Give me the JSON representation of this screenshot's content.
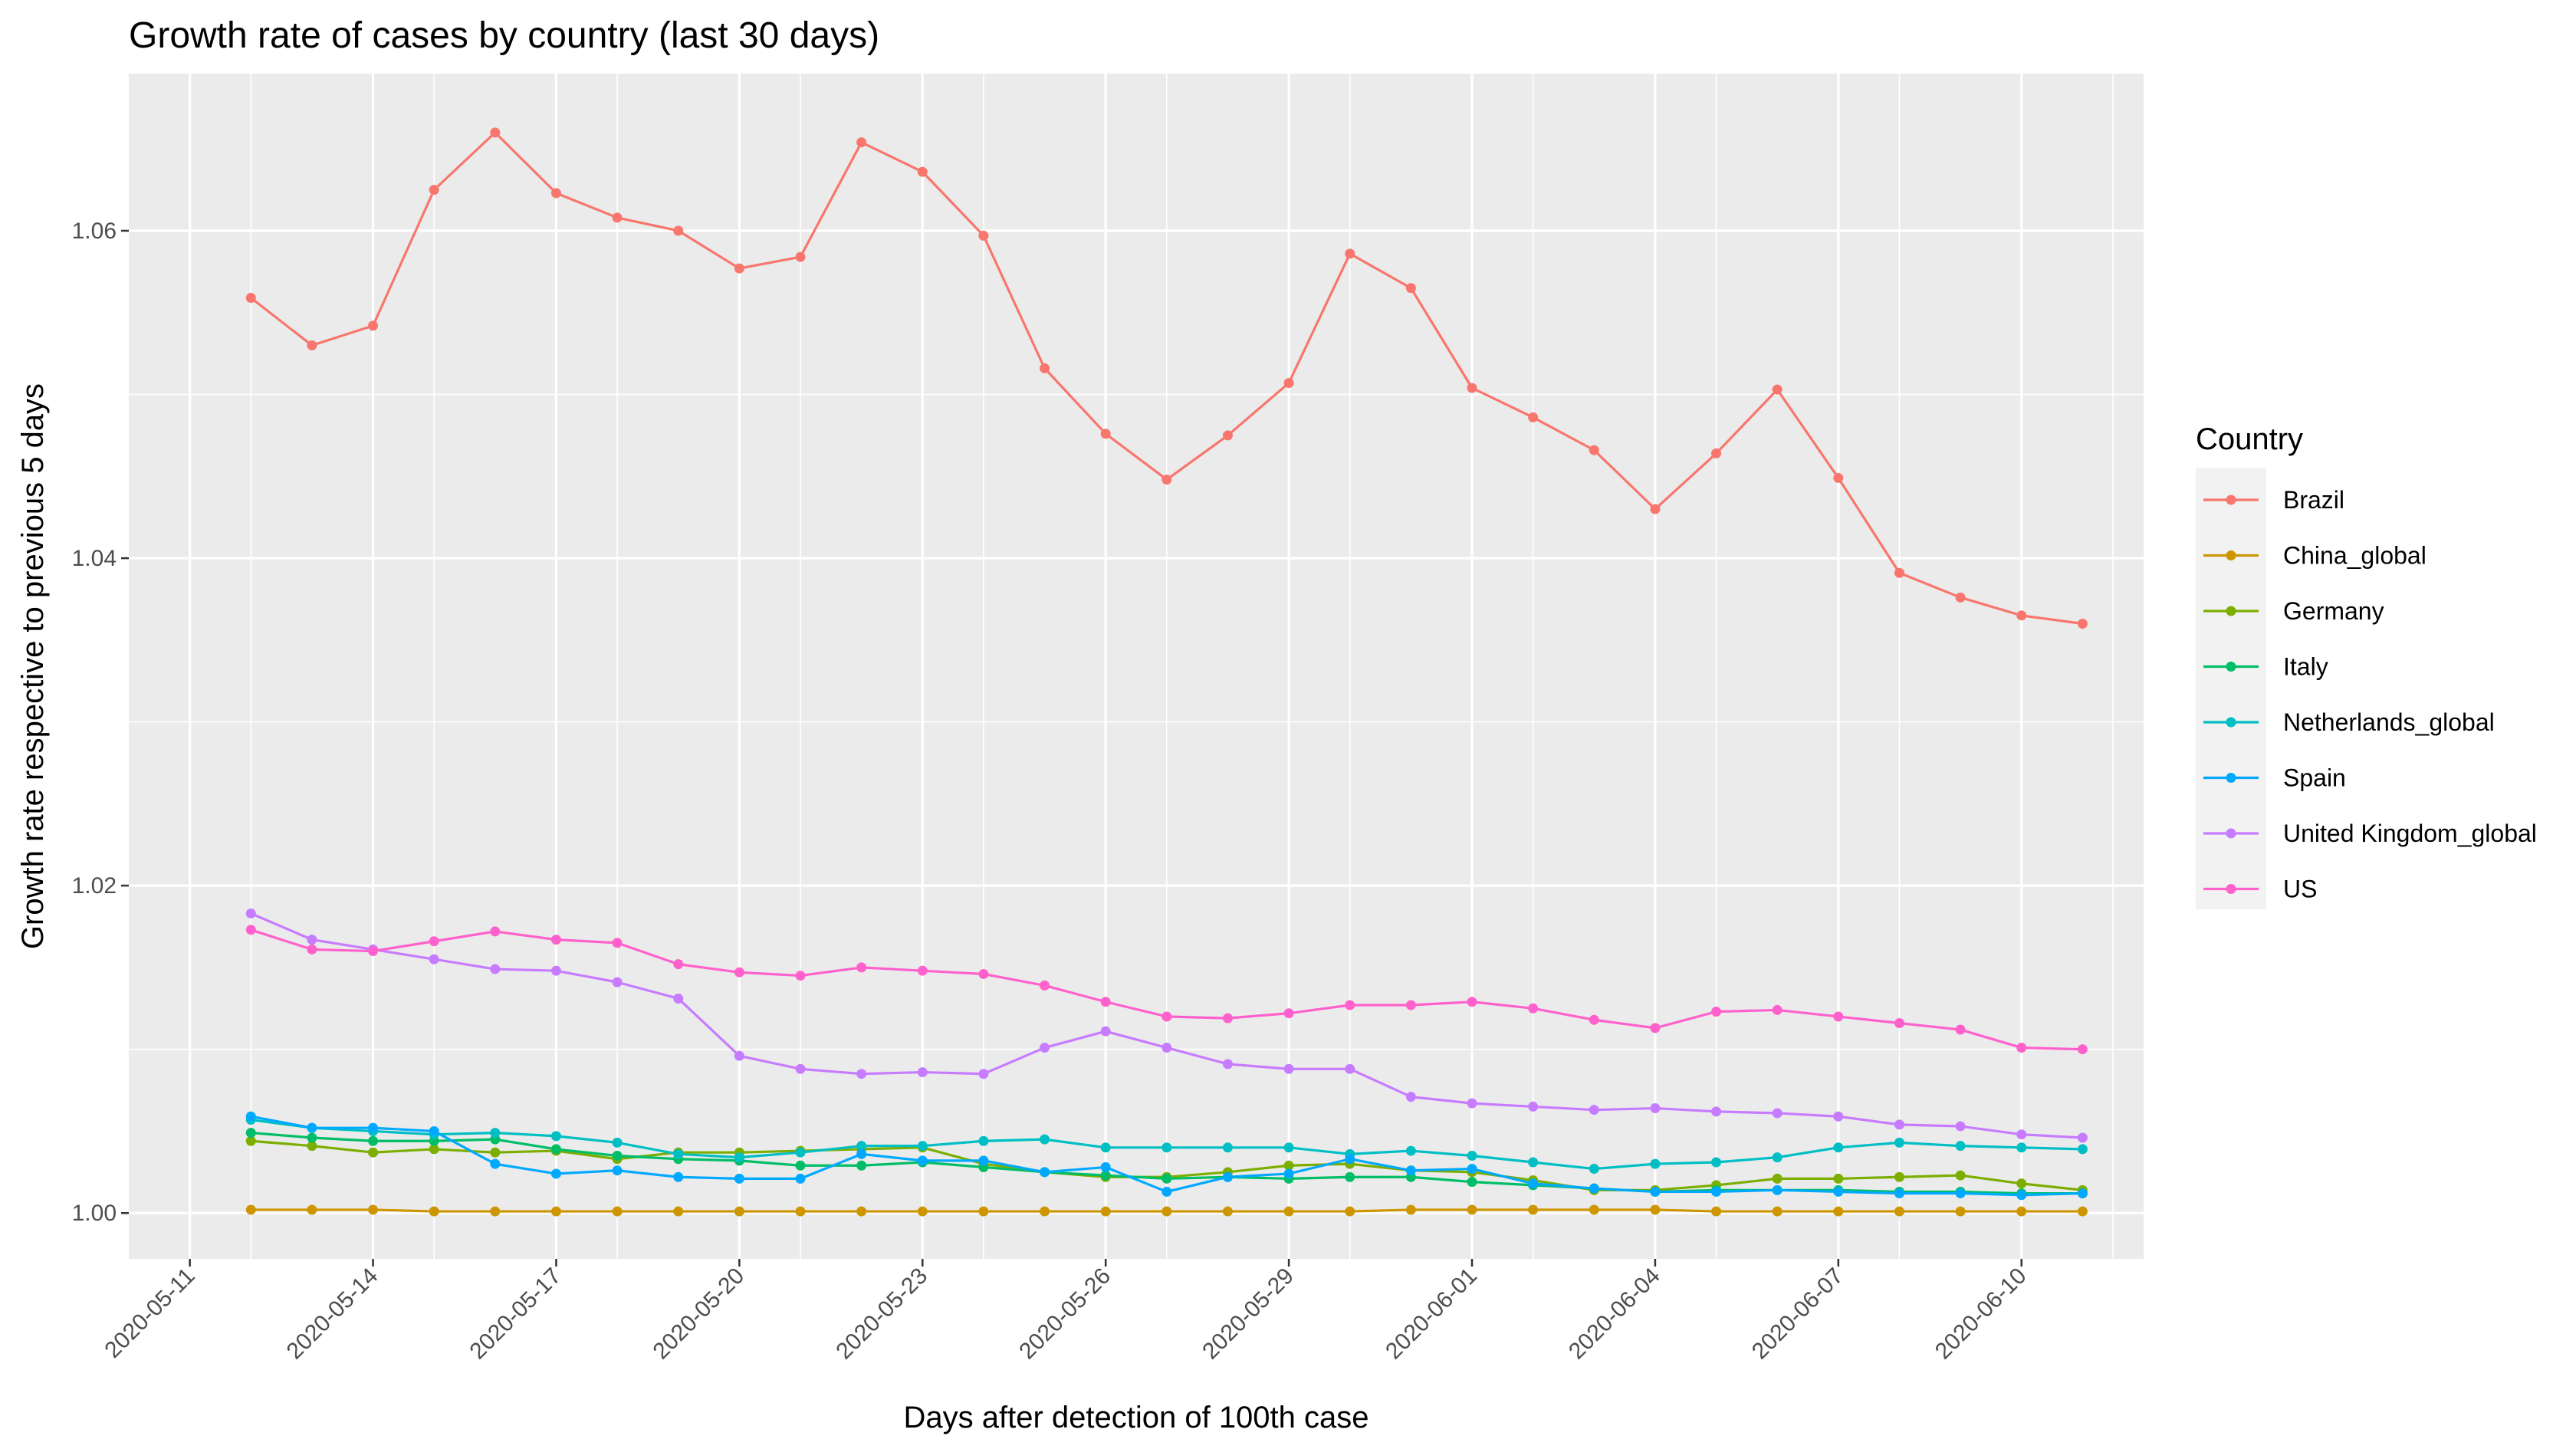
{
  "chart_data": {
    "type": "line",
    "title": "Growth rate of cases by country (last 30 days)",
    "xlabel": "Days after detection of 100th case",
    "ylabel": "Growth rate respective to previous 5 days",
    "x": [
      "2020-05-12",
      "2020-05-13",
      "2020-05-14",
      "2020-05-15",
      "2020-05-16",
      "2020-05-17",
      "2020-05-18",
      "2020-05-19",
      "2020-05-20",
      "2020-05-21",
      "2020-05-22",
      "2020-05-23",
      "2020-05-24",
      "2020-05-25",
      "2020-05-26",
      "2020-05-27",
      "2020-05-28",
      "2020-05-29",
      "2020-05-30",
      "2020-05-31",
      "2020-06-01",
      "2020-06-02",
      "2020-06-03",
      "2020-06-04",
      "2020-06-05",
      "2020-06-06",
      "2020-06-07",
      "2020-06-08",
      "2020-06-09",
      "2020-06-10",
      "2020-06-11"
    ],
    "xlim": [
      "2020-05-10",
      "2020-06-12"
    ],
    "ylim": [
      0.9972,
      1.0696
    ],
    "x_ticks": [
      "2020-05-11",
      "2020-05-14",
      "2020-05-17",
      "2020-05-20",
      "2020-05-23",
      "2020-05-26",
      "2020-05-29",
      "2020-06-01",
      "2020-06-04",
      "2020-06-07",
      "2020-06-10"
    ],
    "y_ticks": [
      1.0,
      1.02,
      1.04,
      1.06
    ],
    "y_tick_labels": [
      "1.00",
      "1.02",
      "1.04",
      "1.06"
    ],
    "grid": true,
    "legend": {
      "title": "Country",
      "position": "right"
    },
    "series": [
      {
        "name": "Brazil",
        "color": "#F8766D",
        "values": [
          1.0559,
          1.053,
          1.0542,
          1.0625,
          1.066,
          1.0623,
          1.0608,
          1.06,
          1.0577,
          1.0584,
          1.0654,
          1.0636,
          1.0597,
          1.0516,
          1.0476,
          1.0448,
          1.0475,
          1.0507,
          1.0586,
          1.0565,
          1.0504,
          1.0486,
          1.0466,
          1.043,
          1.0464,
          1.0503,
          1.0449,
          1.0391,
          1.0376,
          1.0365,
          1.036
        ]
      },
      {
        "name": "China_global",
        "color": "#CD9600",
        "values": [
          1.0002,
          1.0002,
          1.0002,
          1.0001,
          1.0001,
          1.0001,
          1.0001,
          1.0001,
          1.0001,
          1.0001,
          1.0001,
          1.0001,
          1.0001,
          1.0001,
          1.0001,
          1.0001,
          1.0001,
          1.0001,
          1.0001,
          1.0002,
          1.0002,
          1.0002,
          1.0002,
          1.0002,
          1.0001,
          1.0001,
          1.0001,
          1.0001,
          1.0001,
          1.0001,
          1.0001
        ]
      },
      {
        "name": "Germany",
        "color": "#7CAE00",
        "values": [
          1.0044,
          1.0041,
          1.0037,
          1.0039,
          1.0037,
          1.0038,
          1.0033,
          1.0037,
          1.0037,
          1.0038,
          1.0039,
          1.004,
          1.003,
          1.0025,
          1.0022,
          1.0022,
          1.0025,
          1.0029,
          1.003,
          1.0026,
          1.0025,
          1.002,
          1.0014,
          1.0014,
          1.0017,
          1.0021,
          1.0021,
          1.0022,
          1.0023,
          1.0018,
          1.0014
        ]
      },
      {
        "name": "Italy",
        "color": "#00BE67",
        "values": [
          1.0049,
          1.0046,
          1.0044,
          1.0044,
          1.0045,
          1.0039,
          1.0035,
          1.0033,
          1.0032,
          1.0029,
          1.0029,
          1.0031,
          1.0028,
          1.0025,
          1.0023,
          1.0021,
          1.0022,
          1.0021,
          1.0022,
          1.0022,
          1.0019,
          1.0017,
          1.0015,
          1.0013,
          1.0014,
          1.0014,
          1.0014,
          1.0013,
          1.0013,
          1.0012,
          1.0012
        ]
      },
      {
        "name": "Netherlands_global",
        "color": "#00BFC4",
        "values": [
          1.0057,
          1.0052,
          1.005,
          1.0048,
          1.0049,
          1.0047,
          1.0043,
          1.0036,
          1.0034,
          1.0037,
          1.0041,
          1.0041,
          1.0044,
          1.0045,
          1.004,
          1.004,
          1.004,
          1.004,
          1.0036,
          1.0038,
          1.0035,
          1.0031,
          1.0027,
          1.003,
          1.0031,
          1.0034,
          1.004,
          1.0043,
          1.0041,
          1.004,
          1.0039
        ]
      },
      {
        "name": "Spain",
        "color": "#00A9FF",
        "values": [
          1.0059,
          1.0052,
          1.0052,
          1.005,
          1.003,
          1.0024,
          1.0026,
          1.0022,
          1.0021,
          1.0021,
          1.0036,
          1.0032,
          1.0032,
          1.0025,
          1.0028,
          1.0013,
          1.0022,
          1.0024,
          1.0033,
          1.0026,
          1.0027,
          1.0018,
          1.0015,
          1.0013,
          1.0013,
          1.0014,
          1.0013,
          1.0012,
          1.0012,
          1.0011,
          1.0012
        ]
      },
      {
        "name": "United Kingdom_global",
        "color": "#C77CFF",
        "values": [
          1.0183,
          1.0167,
          1.0161,
          1.0155,
          1.0149,
          1.0148,
          1.0141,
          1.0131,
          1.0096,
          1.0088,
          1.0085,
          1.0086,
          1.0085,
          1.0101,
          1.0111,
          1.0101,
          1.0091,
          1.0088,
          1.0088,
          1.0071,
          1.0067,
          1.0065,
          1.0063,
          1.0064,
          1.0062,
          1.0061,
          1.0059,
          1.0054,
          1.0053,
          1.0048,
          1.0046
        ]
      },
      {
        "name": "US",
        "color": "#FF61CC",
        "values": [
          1.0173,
          1.0161,
          1.016,
          1.0166,
          1.0172,
          1.0167,
          1.0165,
          1.0152,
          1.0147,
          1.0145,
          1.015,
          1.0148,
          1.0146,
          1.0139,
          1.0129,
          1.012,
          1.0119,
          1.0122,
          1.0127,
          1.0127,
          1.0129,
          1.0125,
          1.0118,
          1.0113,
          1.0123,
          1.0124,
          1.012,
          1.0116,
          1.0112,
          1.0101,
          1.01
        ]
      }
    ]
  }
}
